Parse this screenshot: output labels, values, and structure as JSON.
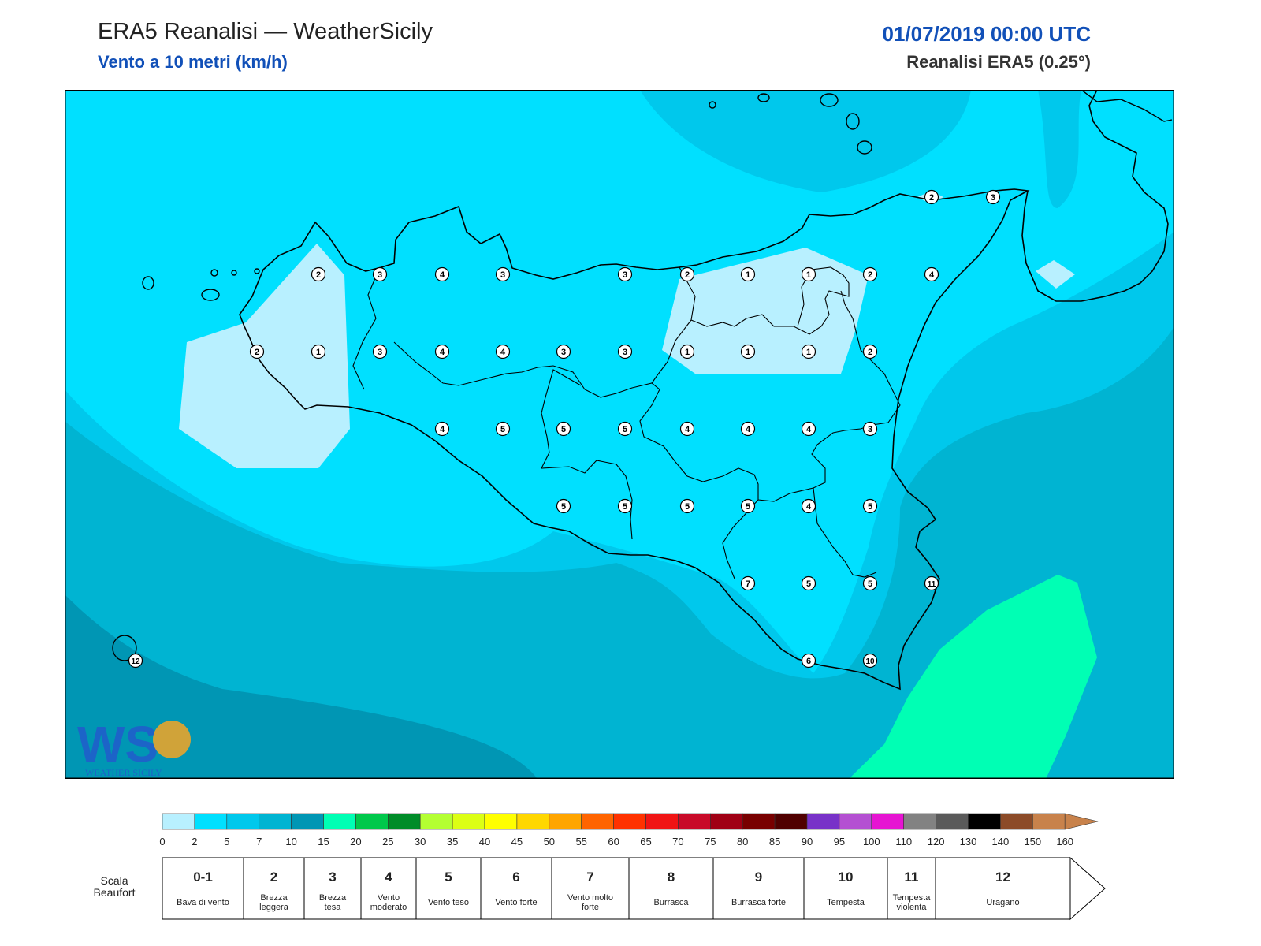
{
  "header": {
    "title": "ERA5 Reanalisi — WeatherSicily",
    "subtitle": "Vento a 10 metri (km/h)",
    "datetime": "01/07/2019 00:00 UTC",
    "source": "Reanalisi ERA5 (0.25°)"
  },
  "map": {
    "region": "Sicilia",
    "field": "wind speed 10 m",
    "background_color": "#00b4d2",
    "stations": [
      {
        "beaufort": "2"
      },
      {
        "beaufort": "3"
      },
      {
        "beaufort": "4"
      },
      {
        "beaufort": "3"
      },
      {
        "beaufort": "3"
      },
      {
        "beaufort": "2"
      },
      {
        "beaufort": "1"
      },
      {
        "beaufort": "1"
      },
      {
        "beaufort": "2"
      },
      {
        "beaufort": "4"
      },
      {
        "beaufort": "2"
      },
      {
        "beaufort": "3"
      },
      {
        "beaufort": "2"
      },
      {
        "beaufort": "1"
      },
      {
        "beaufort": "3"
      },
      {
        "beaufort": "4"
      },
      {
        "beaufort": "4"
      },
      {
        "beaufort": "3"
      },
      {
        "beaufort": "3"
      },
      {
        "beaufort": "1"
      },
      {
        "beaufort": "1"
      },
      {
        "beaufort": "1"
      },
      {
        "beaufort": "2"
      },
      {
        "beaufort": "4"
      },
      {
        "beaufort": "5"
      },
      {
        "beaufort": "5"
      },
      {
        "beaufort": "5"
      },
      {
        "beaufort": "4"
      },
      {
        "beaufort": "4"
      },
      {
        "beaufort": "4"
      },
      {
        "beaufort": "3"
      },
      {
        "beaufort": "5"
      },
      {
        "beaufort": "5"
      },
      {
        "beaufort": "5"
      },
      {
        "beaufort": "5"
      },
      {
        "beaufort": "4"
      },
      {
        "beaufort": "5"
      },
      {
        "beaufort": "7"
      },
      {
        "beaufort": "5"
      },
      {
        "beaufort": "5"
      },
      {
        "beaufort": "11"
      },
      {
        "beaufort": "6"
      },
      {
        "beaufort": "10"
      },
      {
        "beaufort": "12"
      }
    ]
  },
  "colorbar": {
    "ticks": [
      "0",
      "2",
      "5",
      "7",
      "10",
      "15",
      "20",
      "25",
      "30",
      "35",
      "40",
      "45",
      "50",
      "55",
      "60",
      "65",
      "70",
      "75",
      "80",
      "85",
      "90",
      "95",
      "100",
      "110",
      "120",
      "130",
      "140",
      "150",
      "160"
    ],
    "colors": [
      "#b8f0ff",
      "#00e0ff",
      "#00c8ec",
      "#00b4d2",
      "#0096b4",
      "#00ffb4",
      "#00c84b",
      "#008c28",
      "#b4ff32",
      "#dcff14",
      "#ffff00",
      "#ffd700",
      "#ffa500",
      "#ff6400",
      "#ff3200",
      "#f01414",
      "#c80a28",
      "#a00014",
      "#780000",
      "#500000",
      "#7832c8",
      "#b450d2",
      "#e614d2",
      "#828282",
      "#5a5a5a",
      "#000000",
      "#8c4b28",
      "#c8824b"
    ]
  },
  "beaufort": {
    "label": "Scala Beaufort",
    "classes": [
      {
        "num": "0-1",
        "name": "Bava di vento"
      },
      {
        "num": "2",
        "name": "Brezza leggera"
      },
      {
        "num": "3",
        "name": "Brezza tesa"
      },
      {
        "num": "4",
        "name": "Vento moderato"
      },
      {
        "num": "5",
        "name": "Vento teso"
      },
      {
        "num": "6",
        "name": "Vento forte"
      },
      {
        "num": "7",
        "name": "Vento molto forte"
      },
      {
        "num": "8",
        "name": "Burrasca"
      },
      {
        "num": "9",
        "name": "Burrasca forte"
      },
      {
        "num": "10",
        "name": "Tempesta"
      },
      {
        "num": "11",
        "name": "Tempesta violenta"
      },
      {
        "num": "12",
        "name": "Uragano"
      }
    ]
  },
  "watermark": {
    "text": "WEATHER SICILY",
    "logo": "WS"
  }
}
